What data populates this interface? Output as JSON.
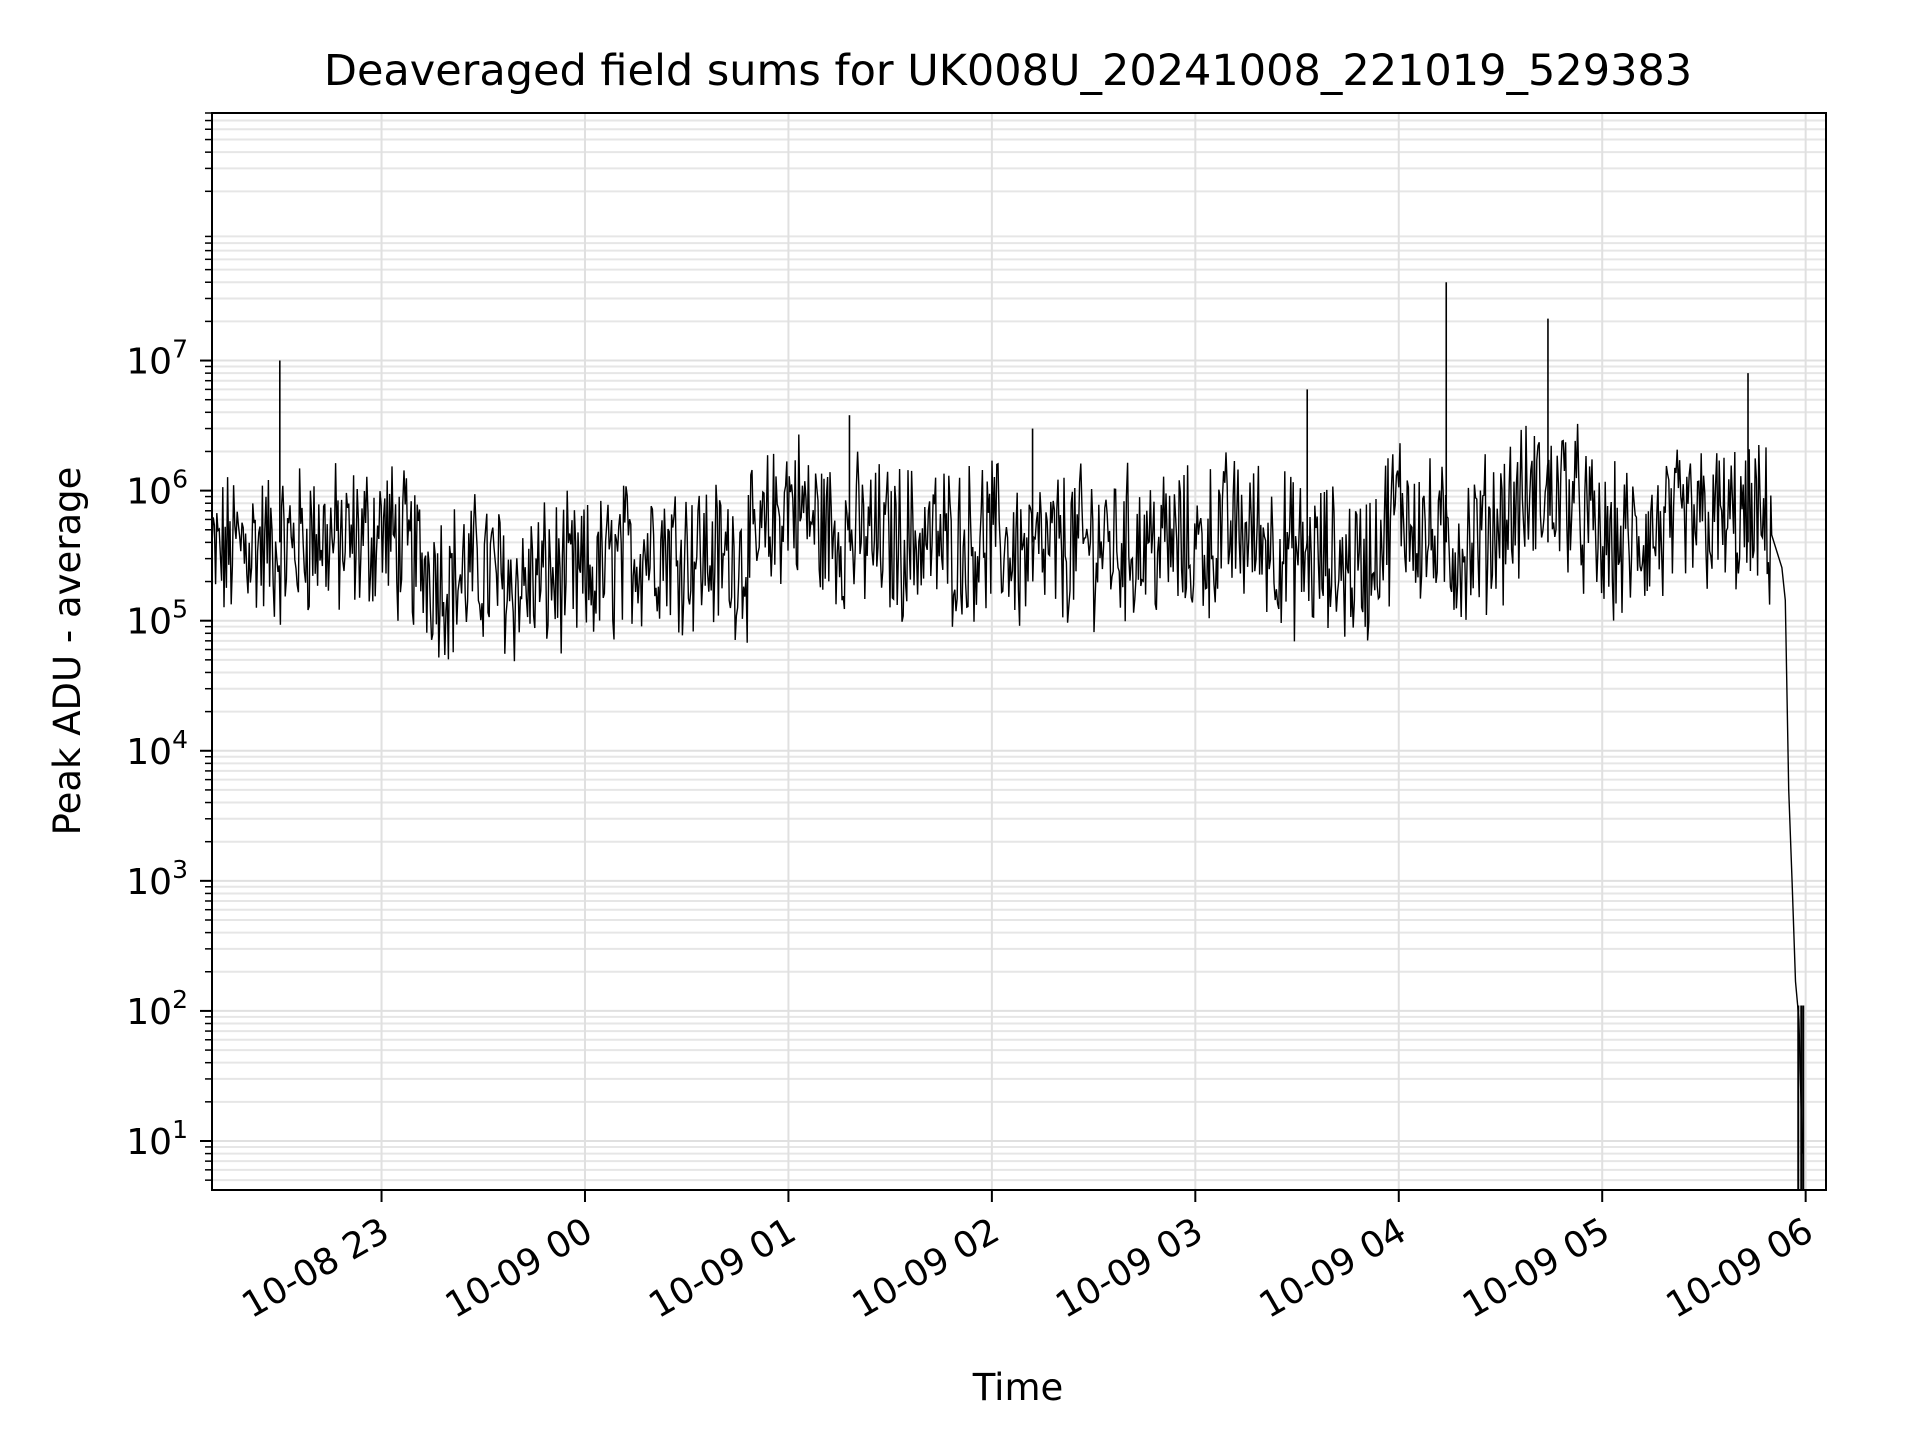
{
  "chart_data": {
    "type": "line",
    "title": "Deaveraged field sums for UK008U_20241008_221019_529383",
    "xlabel": "Time",
    "ylabel": "Peak ADU - average",
    "yscale": "log",
    "ylim": [
      4.2,
      800000000
    ],
    "xlim": [
      "2024-10-08 22:10",
      "2024-10-09 06:06"
    ],
    "x_ticks": [
      {
        "label": "10-08 23",
        "time": "2024-10-08 23:00"
      },
      {
        "label": "10-09 00",
        "time": "2024-10-09 00:00"
      },
      {
        "label": "10-09 01",
        "time": "2024-10-09 01:00"
      },
      {
        "label": "10-09 02",
        "time": "2024-10-09 02:00"
      },
      {
        "label": "10-09 03",
        "time": "2024-10-09 03:00"
      },
      {
        "label": "10-09 04",
        "time": "2024-10-09 04:00"
      },
      {
        "label": "10-09 05",
        "time": "2024-10-09 05:00"
      },
      {
        "label": "10-09 06",
        "time": "2024-10-09 06:00"
      }
    ],
    "y_ticks": [
      {
        "base": "10",
        "exp": "1",
        "value": 10
      },
      {
        "base": "10",
        "exp": "2",
        "value": 100
      },
      {
        "base": "10",
        "exp": "3",
        "value": 1000
      },
      {
        "base": "10",
        "exp": "4",
        "value": 10000
      },
      {
        "base": "10",
        "exp": "5",
        "value": 100000
      },
      {
        "base": "10",
        "exp": "6",
        "value": 1000000
      },
      {
        "base": "10",
        "exp": "7",
        "value": 10000000
      }
    ],
    "grid": true,
    "line_color": "#000000",
    "series": [
      {
        "x": [
          "2024-10-08 22:10",
          "2024-10-08 22:20",
          "2024-10-08 22:30",
          "2024-10-08 22:40",
          "2024-10-08 22:50",
          "2024-10-08 23:00",
          "2024-10-08 23:10",
          "2024-10-08 23:20",
          "2024-10-08 23:30",
          "2024-10-08 23:40",
          "2024-10-08 23:50",
          "2024-10-09 00:00",
          "2024-10-09 00:10",
          "2024-10-09 00:20",
          "2024-10-09 00:30",
          "2024-10-09 00:40",
          "2024-10-09 00:50",
          "2024-10-09 01:00",
          "2024-10-09 01:10",
          "2024-10-09 01:20",
          "2024-10-09 01:30",
          "2024-10-09 01:40",
          "2024-10-09 01:50",
          "2024-10-09 02:00",
          "2024-10-09 02:10",
          "2024-10-09 02:20",
          "2024-10-09 02:30",
          "2024-10-09 02:40",
          "2024-10-09 02:50",
          "2024-10-09 03:00",
          "2024-10-09 03:10",
          "2024-10-09 03:20",
          "2024-10-09 03:30",
          "2024-10-09 03:40",
          "2024-10-09 03:50",
          "2024-10-09 04:00",
          "2024-10-09 04:10",
          "2024-10-09 04:20",
          "2024-10-09 04:30",
          "2024-10-09 04:40",
          "2024-10-09 04:50",
          "2024-10-09 05:00",
          "2024-10-09 05:10",
          "2024-10-09 05:20",
          "2024-10-09 05:30",
          "2024-10-09 05:40",
          "2024-10-09 05:50",
          "2024-10-09 05:53",
          "2024-10-09 05:54",
          "2024-10-09 05:55",
          "2024-10-09 05:56",
          "2024-10-09 05:57",
          "2024-10-09 05:58",
          "2024-10-09 05:59"
        ],
        "y": [
          300000,
          400000,
          350000,
          450000,
          380000,
          500000,
          300000,
          200000,
          250000,
          180000,
          220000,
          200000,
          280000,
          400000,
          350000,
          300000,
          320000,
          900000,
          500000,
          450000,
          400000,
          420000,
          380000,
          450000,
          300000,
          350000,
          400000,
          380000,
          400000,
          350000,
          500000,
          450000,
          300000,
          280000,
          250000,
          800000,
          400000,
          350000,
          600000,
          900000,
          1000000,
          350000,
          400000,
          500000,
          600000,
          550000,
          500000,
          300000,
          150000,
          5000,
          1000,
          150,
          100,
          8
        ],
        "spikes": [
          {
            "x": "2024-10-08 22:30",
            "y": 10000000
          },
          {
            "x": "2024-10-09 01:18",
            "y": 3800000
          },
          {
            "x": "2024-10-09 02:12",
            "y": 3000000
          },
          {
            "x": "2024-10-09 03:33",
            "y": 6000000
          },
          {
            "x": "2024-10-09 04:14",
            "y": 40000000
          },
          {
            "x": "2024-10-09 04:44",
            "y": 21000000
          },
          {
            "x": "2024-10-09 05:43",
            "y": 8000000
          }
        ]
      }
    ]
  }
}
